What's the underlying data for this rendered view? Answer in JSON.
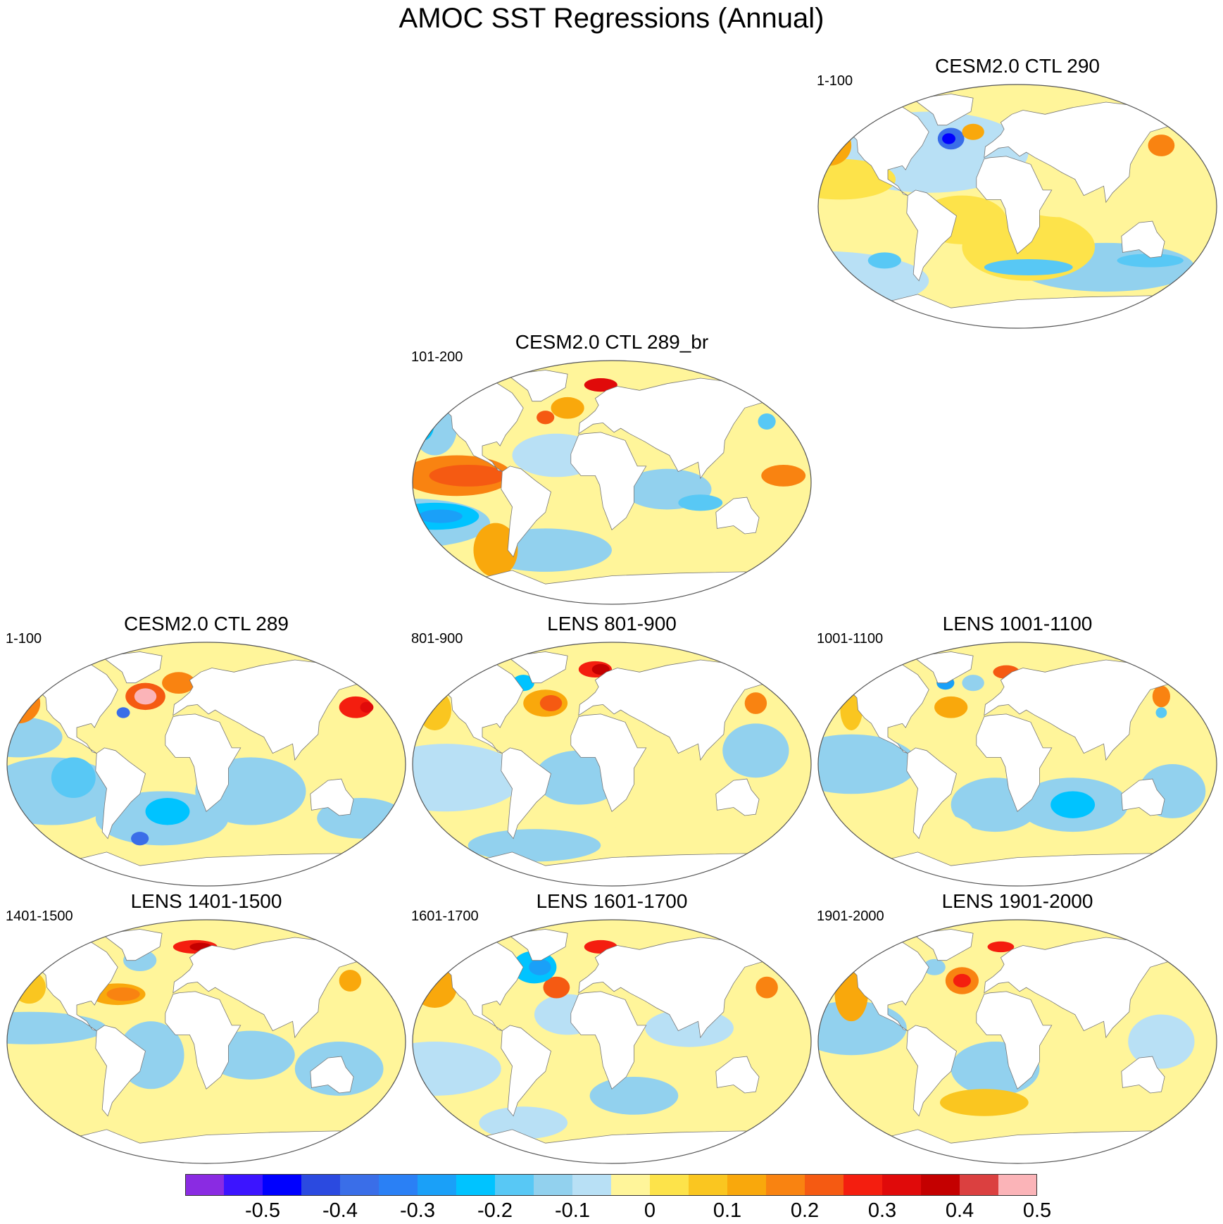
{
  "title": "AMOC SST Regressions (Annual)",
  "panels": [
    {
      "id": "ctl290",
      "title": "CESM2.0 CTL 290",
      "period": "1-100",
      "variant": 0
    },
    {
      "id": "ctl289br",
      "title": "CESM2.0 CTL 289_br",
      "period": "101-200",
      "variant": 1
    },
    {
      "id": "ctl289",
      "title": "CESM2.0 CTL 289",
      "period": "1-100",
      "variant": 2
    },
    {
      "id": "lens801",
      "title": "LENS 801-900",
      "period": "801-900",
      "variant": 3
    },
    {
      "id": "lens1001",
      "title": "LENS 1001-1100",
      "period": "1001-1100",
      "variant": 4
    },
    {
      "id": "lens1401",
      "title": "LENS 1401-1500",
      "period": "1401-1500",
      "variant": 5
    },
    {
      "id": "lens1601",
      "title": "LENS 1601-1700",
      "period": "1601-1700",
      "variant": 6
    },
    {
      "id": "lens1901",
      "title": "LENS 1901-2000",
      "period": "1901-2000",
      "variant": 7
    }
  ],
  "colorbar": {
    "colors": [
      "#8a2be2",
      "#3c14ff",
      "#0000ff",
      "#2b4ae0",
      "#3a6ee8",
      "#2a80f5",
      "#1aa0f8",
      "#00c3ff",
      "#58c8f5",
      "#92d1ee",
      "#b8e0f5",
      "#fff59a",
      "#fde34a",
      "#fac620",
      "#f9a80c",
      "#f98311",
      "#f55a12",
      "#f41e0f",
      "#e00a0a",
      "#c40000",
      "#db4040",
      "#fbb4b8"
    ],
    "labels": [
      "-0.5",
      "-0.4",
      "-0.3",
      "-0.2",
      "-0.1",
      "0",
      "0.1",
      "0.2",
      "0.3",
      "0.4",
      "0.5"
    ]
  }
}
